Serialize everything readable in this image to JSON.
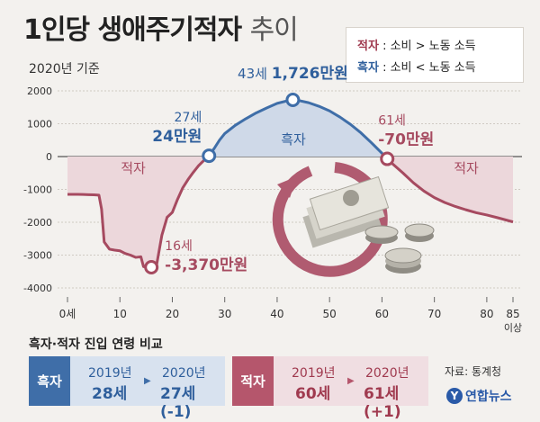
{
  "header": {
    "title": "1인당 생애주기적자",
    "title_light": "추이",
    "subtitle": "2020년 기준"
  },
  "legend": {
    "deficit_key": "적자",
    "deficit_desc": ": 소비 > 노동 소득",
    "surplus_key": "흑자",
    "surplus_desc": ": 소비 < 노동 소득"
  },
  "chart_data": {
    "type": "line",
    "y_ticks": [
      "2000",
      "1000",
      "0",
      "-1000",
      "-2000",
      "-3000",
      "-4000"
    ],
    "x_ticks": [
      "0세",
      "10",
      "20",
      "30",
      "40",
      "50",
      "60",
      "70",
      "80",
      "85"
    ],
    "x_last_suffix": "이상",
    "ylim": [
      -4000,
      2000
    ],
    "xlim": [
      0,
      85
    ],
    "region_labels": {
      "left_deficit": "적자",
      "surplus": "흑자",
      "right_deficit": "적자"
    },
    "points": [
      [
        0,
        -1150
      ],
      [
        1,
        -1150
      ],
      [
        2,
        -1150
      ],
      [
        3,
        -1155
      ],
      [
        4,
        -1160
      ],
      [
        5,
        -1165
      ],
      [
        6,
        -1175
      ],
      [
        6.5,
        -1600
      ],
      [
        7,
        -2600
      ],
      [
        8,
        -2820
      ],
      [
        9,
        -2850
      ],
      [
        10,
        -2870
      ],
      [
        11,
        -2950
      ],
      [
        12,
        -3000
      ],
      [
        13,
        -3070
      ],
      [
        14,
        -3050
      ],
      [
        14.5,
        -3350
      ],
      [
        15,
        -3370
      ],
      [
        16,
        -3370
      ],
      [
        17,
        -3300
      ],
      [
        18,
        -2400
      ],
      [
        19,
        -1850
      ],
      [
        20,
        -1700
      ],
      [
        21,
        -1300
      ],
      [
        22,
        -950
      ],
      [
        23,
        -700
      ],
      [
        24,
        -480
      ],
      [
        25,
        -280
      ],
      [
        26,
        -120
      ],
      [
        27,
        24
      ],
      [
        28,
        250
      ],
      [
        29,
        500
      ],
      [
        30,
        700
      ],
      [
        32,
        950
      ],
      [
        34,
        1150
      ],
      [
        36,
        1330
      ],
      [
        38,
        1480
      ],
      [
        40,
        1620
      ],
      [
        42,
        1700
      ],
      [
        43,
        1726
      ],
      [
        44,
        1710
      ],
      [
        46,
        1640
      ],
      [
        48,
        1530
      ],
      [
        50,
        1390
      ],
      [
        52,
        1200
      ],
      [
        54,
        980
      ],
      [
        56,
        720
      ],
      [
        58,
        420
      ],
      [
        60,
        100
      ],
      [
        61,
        -70
      ],
      [
        62,
        -220
      ],
      [
        64,
        -500
      ],
      [
        66,
        -800
      ],
      [
        68,
        -1050
      ],
      [
        70,
        -1250
      ],
      [
        72,
        -1400
      ],
      [
        74,
        -1520
      ],
      [
        76,
        -1620
      ],
      [
        78,
        -1710
      ],
      [
        80,
        -1780
      ],
      [
        82,
        -1860
      ],
      [
        85,
        -1990
      ]
    ],
    "annotations": [
      {
        "age_label": "43세",
        "value_label": "1,726만원",
        "x": 43,
        "y": 1726
      },
      {
        "age_label": "27세",
        "value_label": "24만원",
        "x": 27,
        "y": 24
      },
      {
        "age_label": "61세",
        "value_label": "-70만원",
        "x": 61,
        "y": -70
      },
      {
        "age_label": "16세",
        "value_label": "-3,370만원",
        "x": 16,
        "y": -3370
      }
    ],
    "colors": {
      "surplus": "#3f6ea8",
      "deficit": "#a64a60",
      "surplus_fill": "#cfd9e8",
      "deficit_fill": "#ecd7db"
    }
  },
  "comparison": {
    "title": "흑자·적자 진입 연령 비교",
    "surplus": {
      "tag": "흑자",
      "year_a": "2019년",
      "val_a": "28세",
      "year_b": "2020년",
      "val_b": "27세(-1)"
    },
    "deficit": {
      "tag": "적자",
      "year_a": "2019년",
      "val_a": "60세",
      "year_b": "2020년",
      "val_b": "61세(+1)"
    }
  },
  "footer": {
    "source": "자료: 통계청",
    "logo_mark": "Y",
    "logo_text": "연합뉴스"
  }
}
